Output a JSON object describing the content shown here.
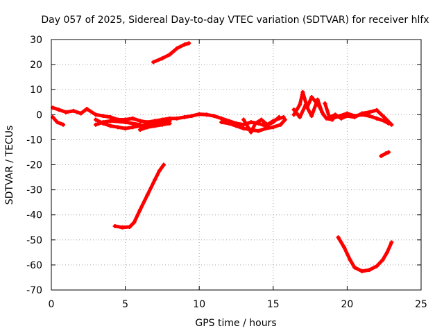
{
  "chart_data": {
    "type": "scatter",
    "title": "Day 057 of 2025, Sidereal Day-to-day VTEC variation (SDTVAR) for receiver hlfx",
    "xlabel": "GPS time / hours",
    "ylabel": "SDTVAR / TECUs",
    "xlim": [
      0,
      25
    ],
    "ylim": [
      -70,
      30
    ],
    "x_ticks": [
      0,
      5,
      10,
      15,
      20,
      25
    ],
    "y_ticks": [
      30,
      20,
      10,
      0,
      -10,
      -20,
      -30,
      -40,
      -50,
      -60,
      -70
    ],
    "grid": true,
    "legend": "none",
    "series_color": "#ff0000",
    "series": [
      {
        "name": "track-1",
        "points": [
          [
            0.1,
            2.8
          ],
          [
            0.5,
            2.0
          ],
          [
            1.0,
            1.0
          ],
          [
            1.5,
            1.5
          ],
          [
            2.0,
            0.5
          ],
          [
            2.4,
            2.3
          ],
          [
            3.0,
            0.0
          ],
          [
            3.5,
            -0.5
          ],
          [
            4.0,
            -1.0
          ],
          [
            4.5,
            -2.0
          ],
          [
            5.0,
            -2.0
          ],
          [
            5.5,
            -1.5
          ],
          [
            6.0,
            -2.5
          ],
          [
            6.5,
            -3.0
          ],
          [
            7.0,
            -2.5
          ],
          [
            7.5,
            -2.0
          ],
          [
            8.0,
            -1.5
          ],
          [
            8.5,
            -1.5
          ],
          [
            9.0,
            -1.0
          ],
          [
            9.5,
            -0.5
          ],
          [
            10.0,
            0.2
          ],
          [
            10.5,
            0.0
          ],
          [
            11.0,
            -0.5
          ],
          [
            11.5,
            -1.5
          ],
          [
            12.0,
            -2.5
          ],
          [
            12.5,
            -3.5
          ],
          [
            13.0,
            -4.0
          ],
          [
            13.5,
            -3.0
          ],
          [
            14.0,
            -3.5
          ],
          [
            14.5,
            -4.5
          ],
          [
            15.0,
            -3.0
          ],
          [
            15.4,
            -1.0
          ]
        ]
      },
      {
        "name": "track-2",
        "points": [
          [
            0.1,
            -1.0
          ],
          [
            0.4,
            -3.0
          ],
          [
            0.8,
            -4.0
          ]
        ]
      },
      {
        "name": "track-3",
        "points": [
          [
            3.0,
            -2.0
          ],
          [
            3.5,
            -3.5
          ],
          [
            4.0,
            -4.5
          ],
          [
            4.5,
            -5.0
          ],
          [
            5.0,
            -5.5
          ],
          [
            5.5,
            -5.0
          ],
          [
            6.0,
            -4.5
          ],
          [
            6.5,
            -4.0
          ],
          [
            7.0,
            -3.5
          ],
          [
            7.5,
            -3.0
          ],
          [
            8.0,
            -2.5
          ]
        ]
      },
      {
        "name": "track-4",
        "points": [
          [
            3.0,
            -4.0
          ],
          [
            3.5,
            -3.0
          ],
          [
            4.0,
            -2.5
          ],
          [
            5.0,
            -3.0
          ],
          [
            6.0,
            -4.0
          ]
        ]
      },
      {
        "name": "track-5",
        "points": [
          [
            6.0,
            -6.0
          ],
          [
            6.5,
            -5.0
          ],
          [
            7.0,
            -4.5
          ],
          [
            7.5,
            -4.0
          ],
          [
            8.0,
            -3.5
          ]
        ]
      },
      {
        "name": "track-6",
        "points": [
          [
            11.5,
            -3.0
          ],
          [
            12.0,
            -3.5
          ],
          [
            12.5,
            -4.5
          ],
          [
            13.0,
            -5.5
          ],
          [
            13.5,
            -6.0
          ],
          [
            14.0,
            -6.5
          ],
          [
            14.5,
            -5.5
          ],
          [
            15.0,
            -5.0
          ],
          [
            15.5,
            -4.0
          ],
          [
            15.8,
            -2.0
          ]
        ]
      },
      {
        "name": "track-7",
        "points": [
          [
            13.0,
            -2.0
          ],
          [
            13.2,
            -4.0
          ],
          [
            13.5,
            -7.0
          ],
          [
            13.8,
            -3.5
          ],
          [
            14.2,
            -2.0
          ],
          [
            14.6,
            -4.0
          ],
          [
            15.0,
            -2.5
          ],
          [
            15.4,
            -1.5
          ],
          [
            15.7,
            -1.0
          ]
        ]
      },
      {
        "name": "track-8",
        "points": [
          [
            6.9,
            21.0
          ],
          [
            7.5,
            22.5
          ],
          [
            8.0,
            24.0
          ],
          [
            8.5,
            26.5
          ],
          [
            9.0,
            28.0
          ],
          [
            9.3,
            28.5
          ]
        ]
      },
      {
        "name": "track-9",
        "points": [
          [
            4.3,
            -44.5
          ],
          [
            4.8,
            -45.0
          ],
          [
            5.3,
            -44.8
          ],
          [
            5.6,
            -43.0
          ],
          [
            6.0,
            -38.0
          ],
          [
            6.5,
            -32.0
          ],
          [
            7.0,
            -26.0
          ],
          [
            7.3,
            -22.5
          ],
          [
            7.6,
            -20.0
          ]
        ]
      },
      {
        "name": "track-10",
        "points": [
          [
            16.4,
            0.0
          ],
          [
            16.8,
            4.0
          ],
          [
            17.0,
            9.0
          ],
          [
            17.3,
            3.0
          ],
          [
            17.6,
            7.0
          ],
          [
            17.9,
            5.0
          ],
          [
            18.1,
            3.5
          ],
          [
            18.4,
            0.0
          ],
          [
            18.6,
            -1.5
          ],
          [
            19.0,
            -2.0
          ]
        ]
      },
      {
        "name": "track-11",
        "points": [
          [
            16.4,
            2.0
          ],
          [
            16.8,
            -1.0
          ],
          [
            17.2,
            4.0
          ],
          [
            17.6,
            -0.5
          ],
          [
            18.0,
            6.0
          ],
          [
            18.3,
            1.0
          ]
        ]
      },
      {
        "name": "track-12",
        "points": [
          [
            18.5,
            4.5
          ],
          [
            18.8,
            -1.0
          ],
          [
            19.2,
            0.0
          ],
          [
            19.6,
            -1.5
          ],
          [
            20.0,
            -0.5
          ],
          [
            20.5,
            -1.0
          ],
          [
            21.0,
            0.5
          ],
          [
            21.5,
            1.0
          ],
          [
            22.0,
            1.8
          ],
          [
            22.5,
            -1.0
          ],
          [
            23.0,
            -4.0
          ]
        ]
      },
      {
        "name": "track-13",
        "points": [
          [
            19.0,
            -1.5
          ],
          [
            19.5,
            -0.5
          ],
          [
            20.0,
            0.5
          ],
          [
            20.5,
            -0.5
          ],
          [
            21.0,
            0.0
          ],
          [
            21.5,
            -0.5
          ],
          [
            22.0,
            -1.5
          ],
          [
            22.5,
            -2.5
          ],
          [
            22.8,
            -3.5
          ]
        ]
      },
      {
        "name": "track-14",
        "points": [
          [
            22.3,
            -16.5
          ],
          [
            22.6,
            -15.5
          ],
          [
            22.8,
            -15.0
          ]
        ]
      },
      {
        "name": "track-15",
        "points": [
          [
            19.4,
            -49.0
          ],
          [
            19.8,
            -53.0
          ],
          [
            20.2,
            -58.0
          ],
          [
            20.5,
            -61.0
          ],
          [
            21.0,
            -62.5
          ],
          [
            21.5,
            -62.0
          ],
          [
            22.0,
            -60.5
          ],
          [
            22.4,
            -58.0
          ],
          [
            22.7,
            -55.0
          ],
          [
            23.0,
            -51.0
          ]
        ]
      }
    ]
  }
}
